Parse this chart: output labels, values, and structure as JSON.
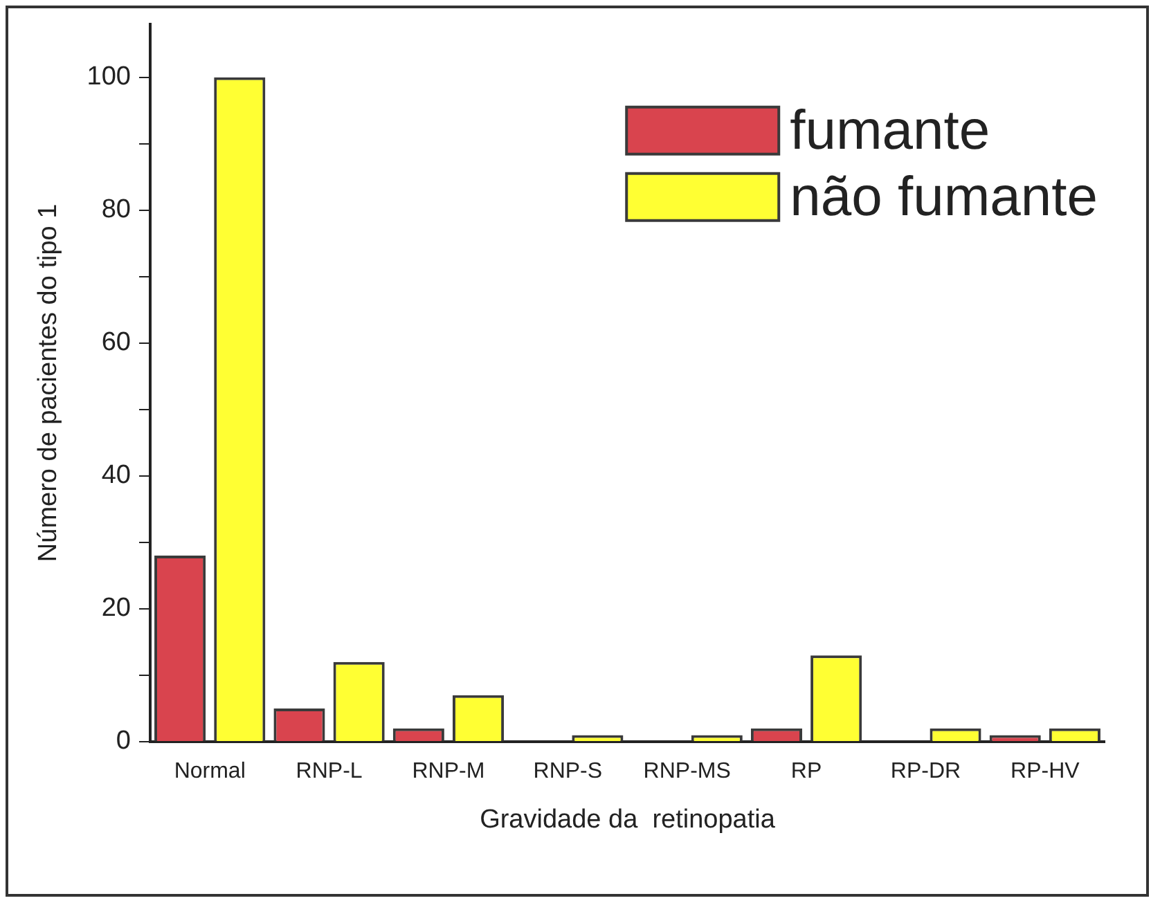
{
  "chart_data": {
    "type": "bar",
    "xlabel": "Gravidade da  retinopatia",
    "ylabel": "Número de pacientes do tipo 1",
    "categories": [
      "Normal",
      "RNP-L",
      "RNP-M",
      "RNP-S",
      "RNP-MS",
      "RP",
      "RP-DR",
      "RP-HV"
    ],
    "series": [
      {
        "name": "fumante",
        "color": "#d9444e",
        "values": [
          28,
          5,
          2,
          0,
          0,
          2,
          0,
          1
        ]
      },
      {
        "name": "não fumante",
        "color": "#ffff33",
        "values": [
          100,
          12,
          7,
          1,
          1,
          13,
          2,
          2
        ]
      }
    ],
    "ylim": [
      0,
      108
    ],
    "yticks": [
      0,
      {
        "value": 10,
        "label": null
      },
      20,
      {
        "value": 30,
        "label": null
      },
      40,
      {
        "value": 50,
        "label": null
      },
      60,
      {
        "value": 70,
        "label": null
      },
      80,
      {
        "value": 90,
        "label": null
      },
      100
    ],
    "legend": "top right",
    "grid": false
  }
}
